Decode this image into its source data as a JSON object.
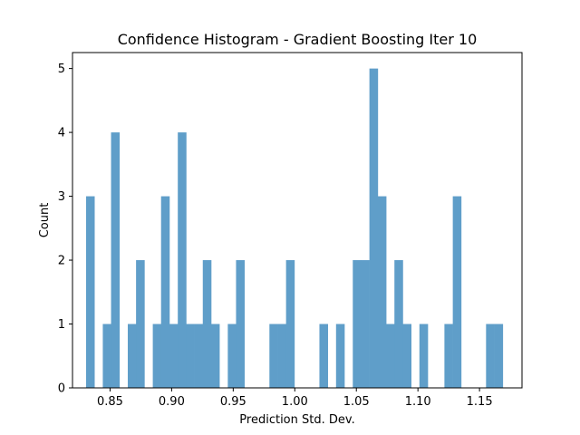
{
  "chart_data": {
    "type": "bar",
    "title": "Confidence Histogram - Gradient Boosting Iter 10",
    "xlabel": "Prediction Std. Dev.",
    "ylabel": "Count",
    "xlim": [
      0.8195,
      1.1845
    ],
    "ylim": [
      0,
      5.25
    ],
    "bin_width": 0.00677,
    "bar_color": "#5f9ec9",
    "xticks": [
      {
        "value": 0.85,
        "label": "0.85"
      },
      {
        "value": 0.9,
        "label": "0.90"
      },
      {
        "value": 0.95,
        "label": "0.95"
      },
      {
        "value": 1.0,
        "label": "1.00"
      },
      {
        "value": 1.05,
        "label": "1.05"
      },
      {
        "value": 1.1,
        "label": "1.10"
      },
      {
        "value": 1.15,
        "label": "1.15"
      }
    ],
    "yticks": [
      {
        "value": 0,
        "label": "0"
      },
      {
        "value": 1,
        "label": "1"
      },
      {
        "value": 2,
        "label": "2"
      },
      {
        "value": 3,
        "label": "3"
      },
      {
        "value": 4,
        "label": "4"
      },
      {
        "value": 5,
        "label": "5"
      }
    ],
    "bins": [
      0.8305,
      0.8373,
      0.8441,
      0.8508,
      0.8576,
      0.8644,
      0.8711,
      0.8779,
      0.8847,
      0.8914,
      0.8982,
      0.905,
      0.9117,
      0.9185,
      0.9253,
      0.932,
      0.9388,
      0.9456,
      0.9523,
      0.9591,
      0.9659,
      0.9726,
      0.9794,
      0.9862,
      0.9929,
      0.9997,
      1.0065,
      1.0132,
      1.02,
      1.0268,
      1.0335,
      1.0403,
      1.0471,
      1.0538,
      1.0606,
      1.0674,
      1.0741,
      1.0809,
      1.0877,
      1.0944,
      1.1012,
      1.108,
      1.1147,
      1.1215,
      1.1283,
      1.135,
      1.1418,
      1.1486,
      1.1553,
      1.1621
    ],
    "values": [
      3,
      0,
      1,
      4,
      0,
      1,
      2,
      0,
      1,
      3,
      1,
      4,
      1,
      1,
      2,
      1,
      0,
      1,
      2,
      0,
      0,
      0,
      1,
      1,
      2,
      0,
      0,
      0,
      1,
      0,
      1,
      0,
      2,
      2,
      5,
      3,
      1,
      2,
      1,
      0,
      1,
      0,
      0,
      1,
      3,
      0,
      0,
      0,
      1,
      1
    ]
  }
}
